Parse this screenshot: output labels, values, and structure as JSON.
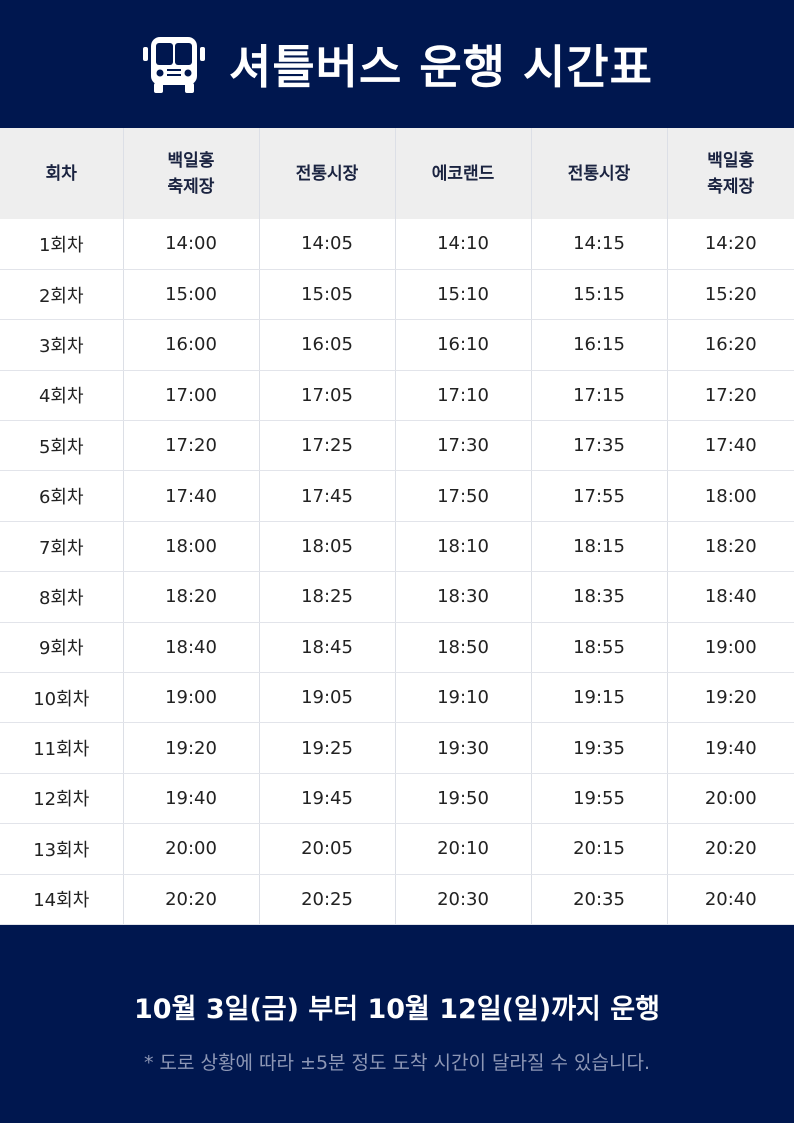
{
  "header": {
    "title": "셔틀버스 운행 시간표",
    "icon": "bus-icon"
  },
  "table": {
    "columns": [
      "회차",
      "백일홍\n축제장",
      "전통시장",
      "에코랜드",
      "전통시장",
      "백일홍\n축제장"
    ],
    "rows": [
      [
        "1회차",
        "14:00",
        "14:05",
        "14:10",
        "14:15",
        "14:20"
      ],
      [
        "2회차",
        "15:00",
        "15:05",
        "15:10",
        "15:15",
        "15:20"
      ],
      [
        "3회차",
        "16:00",
        "16:05",
        "16:10",
        "16:15",
        "16:20"
      ],
      [
        "4회차",
        "17:00",
        "17:05",
        "17:10",
        "17:15",
        "17:20"
      ],
      [
        "5회차",
        "17:20",
        "17:25",
        "17:30",
        "17:35",
        "17:40"
      ],
      [
        "6회차",
        "17:40",
        "17:45",
        "17:50",
        "17:55",
        "18:00"
      ],
      [
        "7회차",
        "18:00",
        "18:05",
        "18:10",
        "18:15",
        "18:20"
      ],
      [
        "8회차",
        "18:20",
        "18:25",
        "18:30",
        "18:35",
        "18:40"
      ],
      [
        "9회차",
        "18:40",
        "18:45",
        "18:50",
        "18:55",
        "19:00"
      ],
      [
        "10회차",
        "19:00",
        "19:05",
        "19:10",
        "19:15",
        "19:20"
      ],
      [
        "11회차",
        "19:20",
        "19:25",
        "19:30",
        "19:35",
        "19:40"
      ],
      [
        "12회차",
        "19:40",
        "19:45",
        "19:50",
        "19:55",
        "20:00"
      ],
      [
        "13회차",
        "20:00",
        "20:05",
        "20:10",
        "20:15",
        "20:20"
      ],
      [
        "14회차",
        "20:20",
        "20:25",
        "20:30",
        "20:35",
        "20:40"
      ]
    ]
  },
  "footer": {
    "period": "10월 3일(금) 부터 10월 12일(일)까지 운행",
    "note": "* 도로 상황에 따라 ±5분 정도 도착 시간이 달라질 수 있습니다."
  },
  "colors": {
    "navy": "#00174f",
    "header_bg": "#eeeeee",
    "note": "#8d97b5"
  }
}
